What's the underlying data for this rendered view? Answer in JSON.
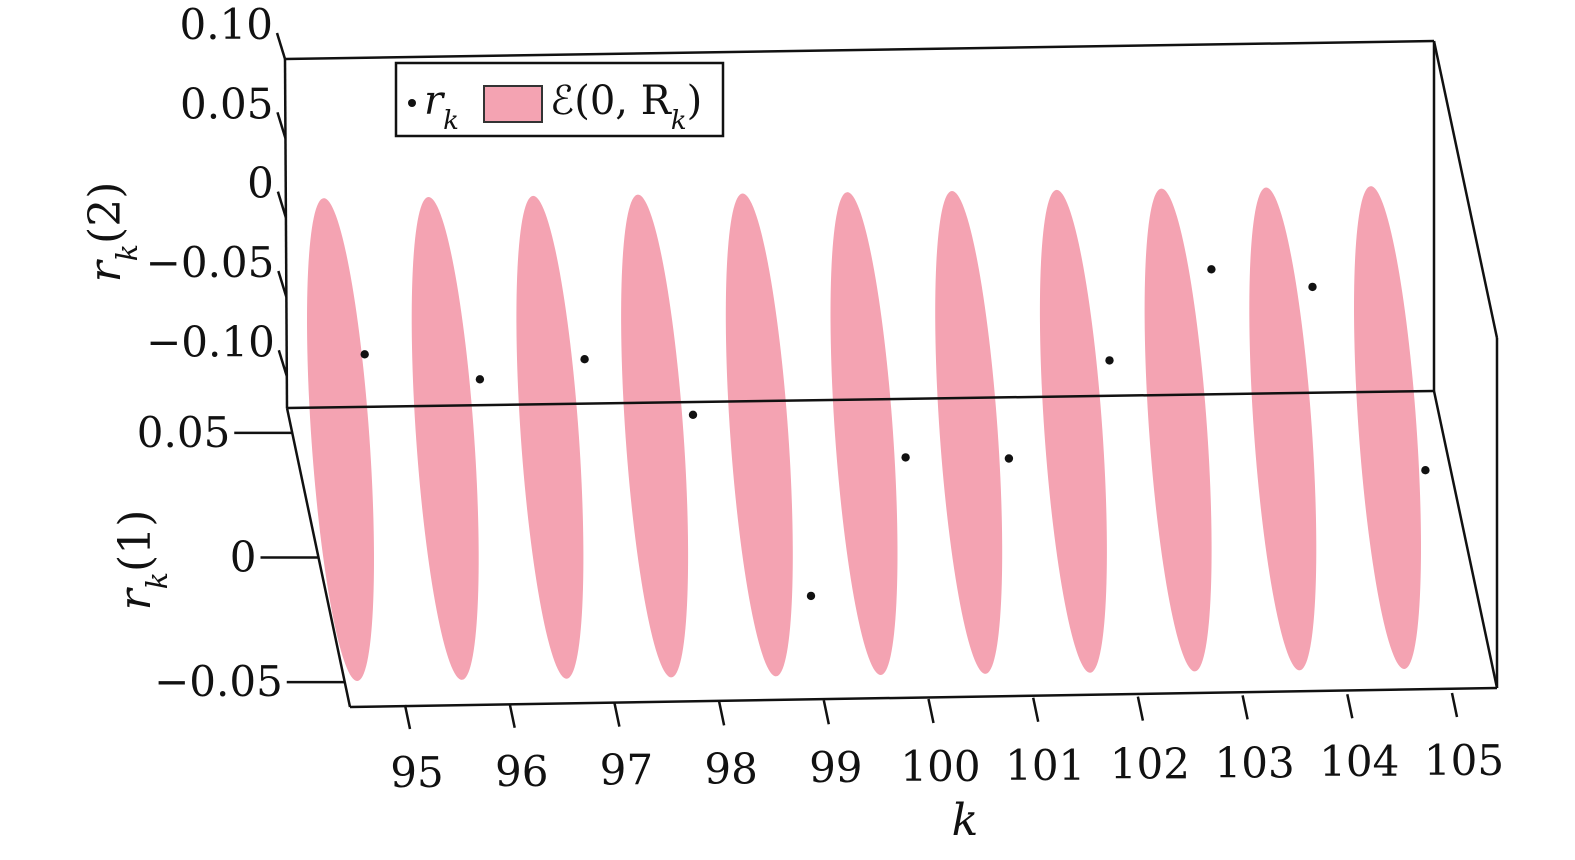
{
  "chart_data": {
    "type": "scatter",
    "title": "",
    "colors": {
      "ellipse": "#f4a3b2",
      "point": "#111111",
      "frame": "#111111"
    },
    "axes": {
      "x": {
        "label": "k",
        "ticks": [
          "95",
          "96",
          "97",
          "98",
          "99",
          "100",
          "101",
          "102",
          "103",
          "104",
          "105"
        ],
        "lim": [
          95,
          105
        ]
      },
      "y": {
        "label": "r_k(1)",
        "ticks": [
          "0.05",
          "0",
          "−0.05"
        ],
        "tick_values": [
          0.05,
          0,
          -0.05
        ],
        "lim": [
          -0.06,
          0.06
        ]
      },
      "z": {
        "label": "r_k(2)",
        "ticks": [
          "0.10",
          "0.05",
          "0",
          "−0.05",
          "−0.10"
        ],
        "tick_values": [
          0.1,
          0.05,
          0,
          -0.05,
          -0.1
        ],
        "lim": [
          -0.12,
          0.1
        ]
      }
    },
    "legend": {
      "position": "top-left",
      "entries": [
        {
          "label": "r_k",
          "marker": "point"
        },
        {
          "label": "ℰ(0, R_k)",
          "marker": "patch"
        }
      ]
    },
    "ellipses": {
      "name": "ℰ(0, R_k)",
      "k": [
        95,
        96,
        97,
        98,
        99,
        100,
        101,
        102,
        103,
        104,
        105
      ]
    },
    "series": [
      {
        "name": "r_k",
        "k": [
          95,
          96,
          97,
          98,
          99,
          100,
          101,
          102,
          103,
          104,
          105
        ],
        "r1": [
          0.028,
          0.005,
          0.005,
          -0.003,
          -0.032,
          -0.01,
          -0.007,
          0.002,
          0.008,
          0.016,
          -0.002
        ],
        "r2": [
          -0.045,
          -0.03,
          -0.02,
          -0.04,
          -0.1,
          -0.055,
          -0.06,
          -0.02,
          0.02,
          0.0,
          -0.075
        ]
      }
    ]
  }
}
